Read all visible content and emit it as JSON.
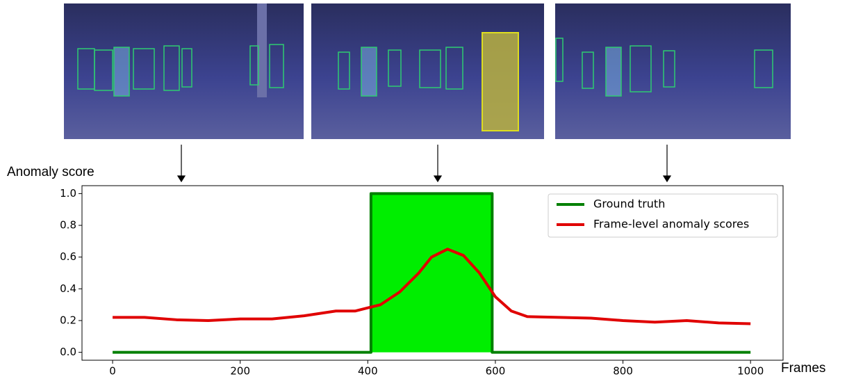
{
  "chart_data": {
    "type": "line",
    "y_label": "Anomaly score",
    "x_label": "Frames",
    "xlim": [
      -48,
      1051
    ],
    "ylim": [
      -0.05,
      1.05
    ],
    "xticks": [
      0,
      200,
      400,
      600,
      800,
      1000
    ],
    "yticks": [
      {
        "value": 0,
        "label": "0.0"
      },
      {
        "value": 0.2,
        "label": "0.2"
      },
      {
        "value": 0.4,
        "label": "0.4"
      },
      {
        "value": 0.6,
        "label": "0.6"
      },
      {
        "value": 0.8,
        "label": "0.8"
      },
      {
        "value": 1,
        "label": "1.0"
      }
    ],
    "legend": "upper right",
    "series": [
      {
        "name": "Ground truth",
        "color": "#008000",
        "fill_color": "#00ee00",
        "x": [
          0,
          405,
          405,
          595,
          595,
          1000
        ],
        "values": [
          0,
          0,
          1,
          1,
          0,
          0
        ]
      },
      {
        "name": "Frame-level anomaly scores",
        "color": "#e00000",
        "x": [
          0,
          50,
          100,
          150,
          200,
          250,
          300,
          350,
          380,
          400,
          420,
          450,
          480,
          500,
          525,
          550,
          575,
          600,
          625,
          650,
          700,
          750,
          800,
          850,
          900,
          950,
          1000
        ],
        "values": [
          0.22,
          0.22,
          0.205,
          0.2,
          0.21,
          0.21,
          0.23,
          0.26,
          0.26,
          0.28,
          0.3,
          0.38,
          0.5,
          0.6,
          0.65,
          0.61,
          0.5,
          0.35,
          0.26,
          0.225,
          0.22,
          0.215,
          0.2,
          0.19,
          0.2,
          0.185,
          0.18
        ]
      }
    ]
  }
}
